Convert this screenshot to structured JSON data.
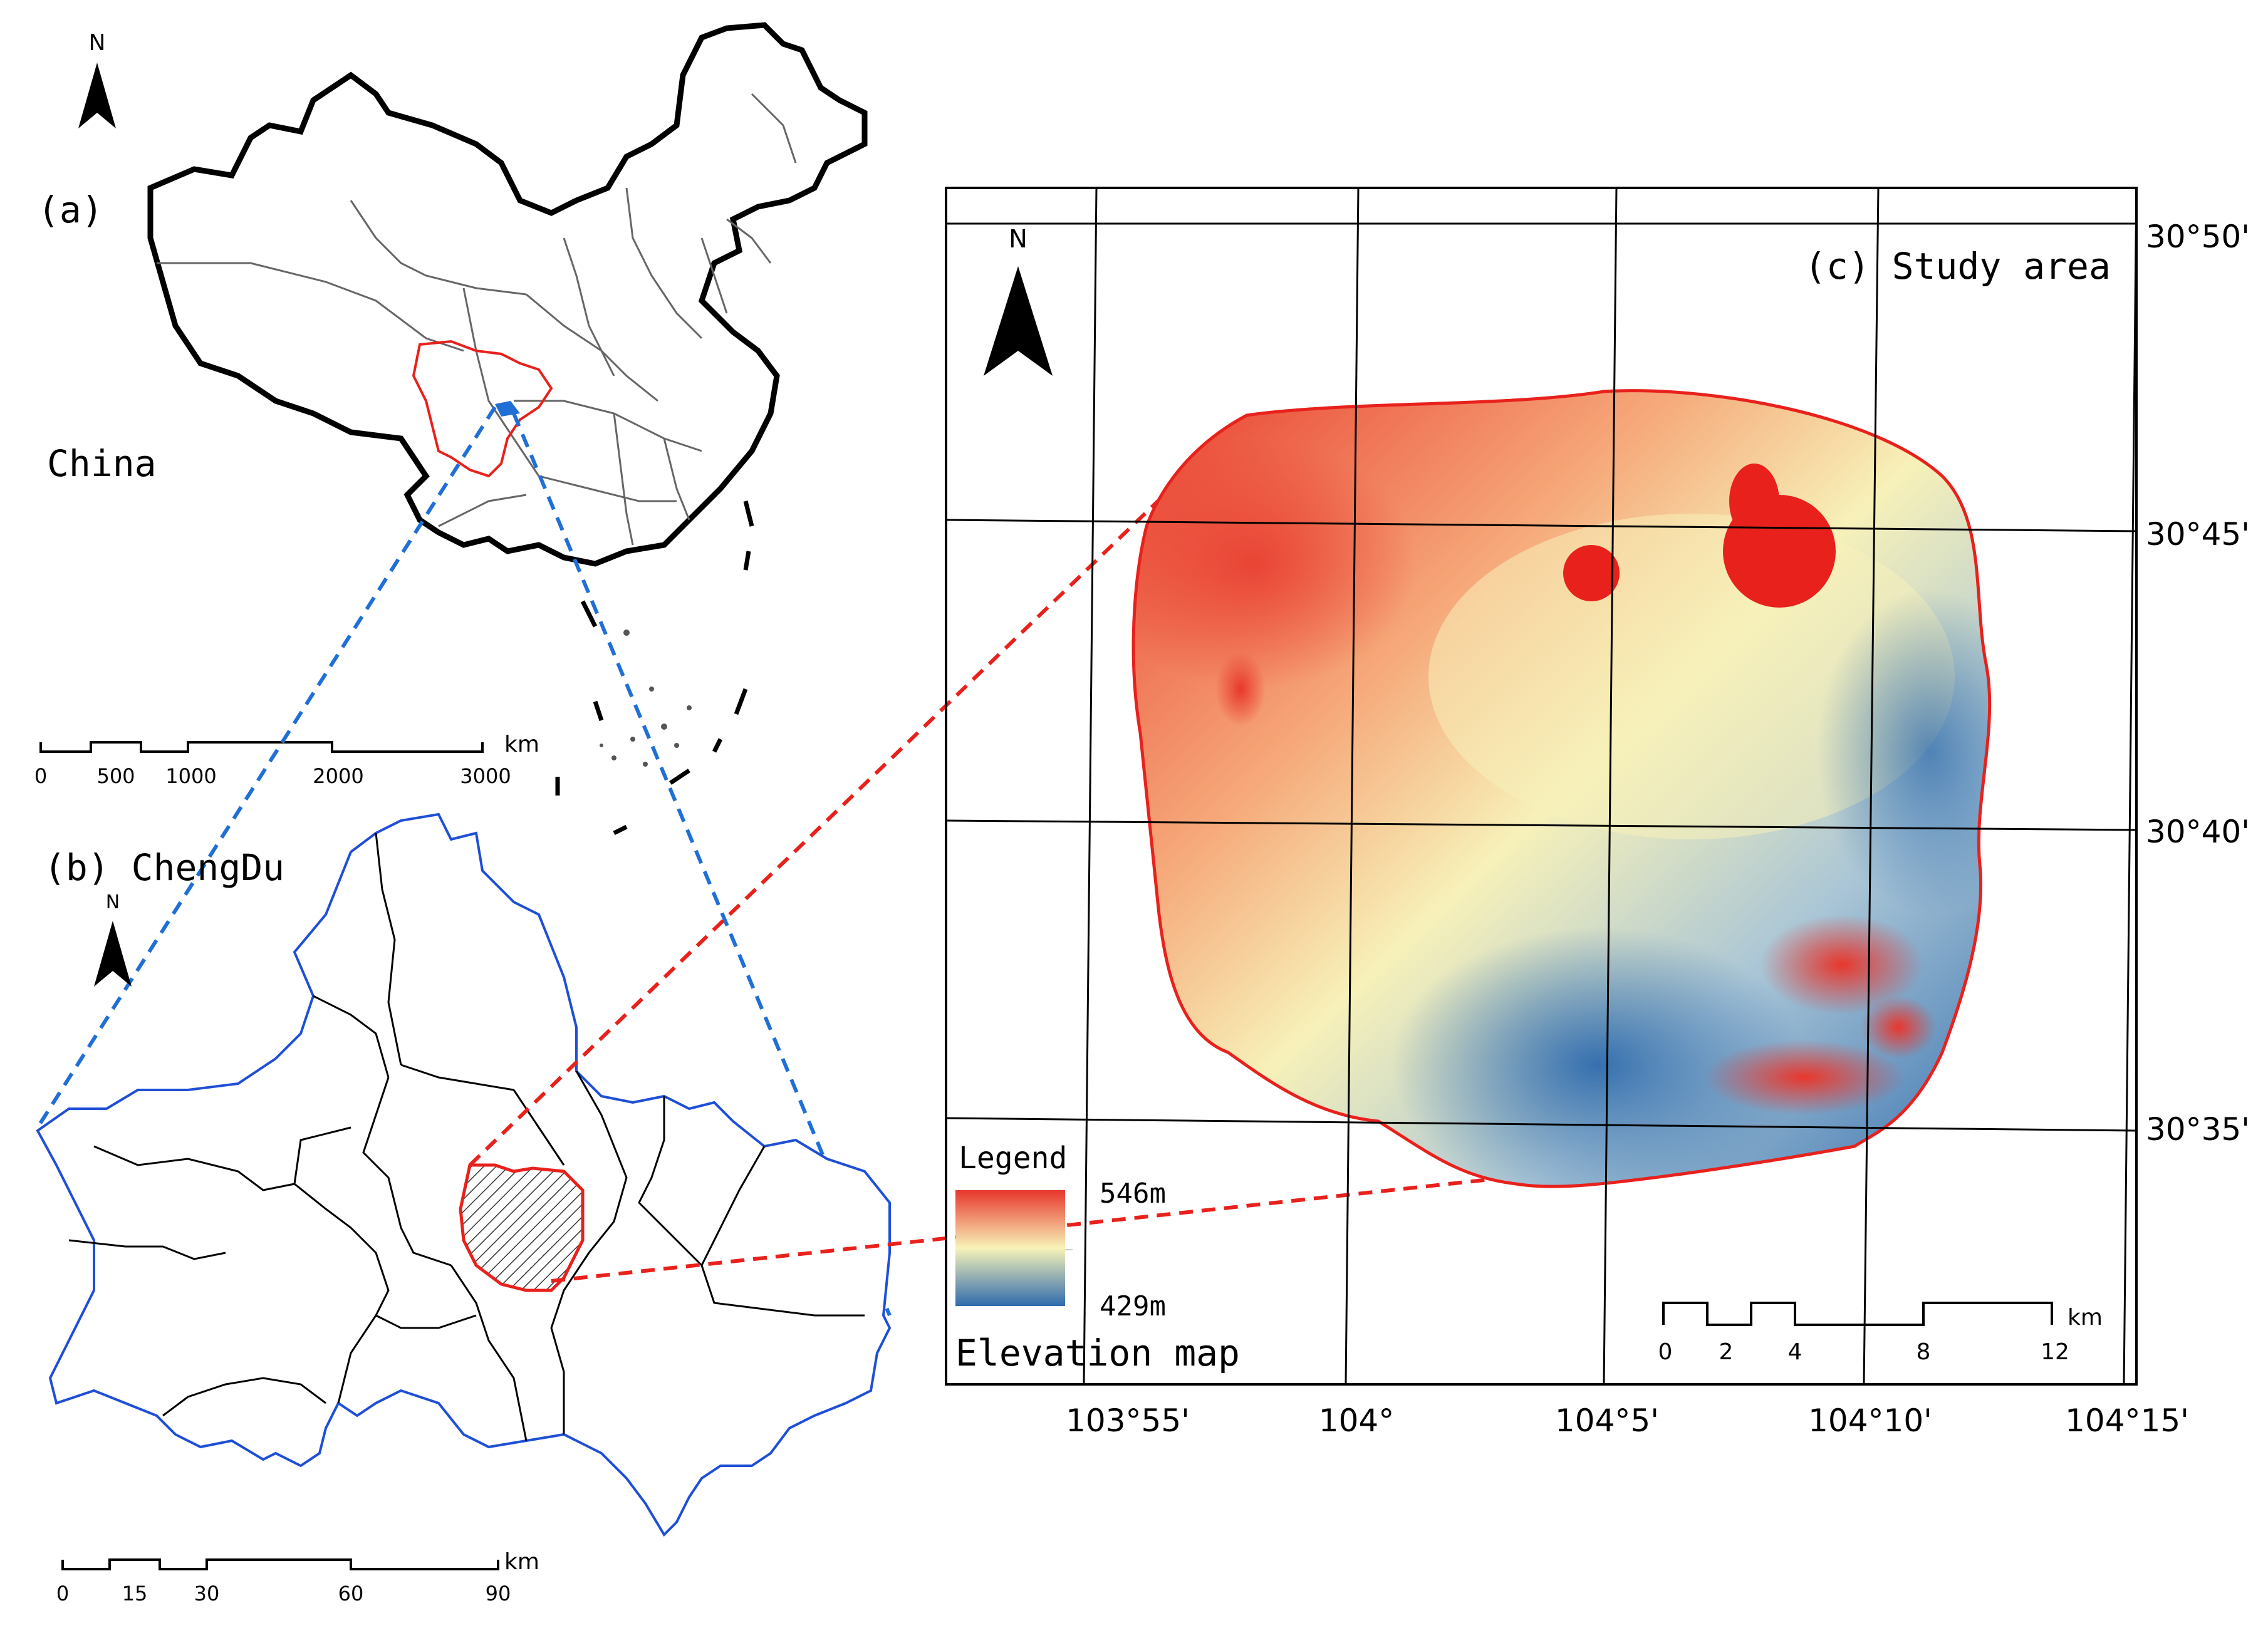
{
  "panel_a": {
    "label": "(a)",
    "country_label": "China",
    "north": "N",
    "scale": {
      "ticks": [
        "0",
        "500",
        "1000",
        "2000",
        "3000"
      ],
      "unit": "km"
    }
  },
  "panel_b": {
    "label": "(b) ChengDu",
    "north": "N",
    "scale": {
      "ticks": [
        "0",
        "15",
        "30",
        "60",
        "90"
      ],
      "unit": "km"
    }
  },
  "panel_c": {
    "label": "(c) Study area",
    "north": "N",
    "lat_labels": [
      "30°50'",
      "30°45'",
      "30°40'",
      "30°35'"
    ],
    "lon_labels": [
      "103°55'",
      "104°",
      "104°5'",
      "104°10'",
      "104°15'"
    ],
    "legend": {
      "title": "Legend",
      "max": "546m",
      "min": "429m",
      "caption": "Elevation map",
      "colors": {
        "high": "#e8372c",
        "mid": "#f7f3b8",
        "low": "#2f6bad"
      }
    },
    "scale": {
      "ticks": [
        "0",
        "2",
        "4",
        "8",
        "12"
      ],
      "unit": "km"
    }
  },
  "colors": {
    "boundary_red": "#e8211c",
    "blue_boundary": "#1f4fd6",
    "link_blue": "#1f6fd6",
    "link_red": "#e8211c"
  }
}
